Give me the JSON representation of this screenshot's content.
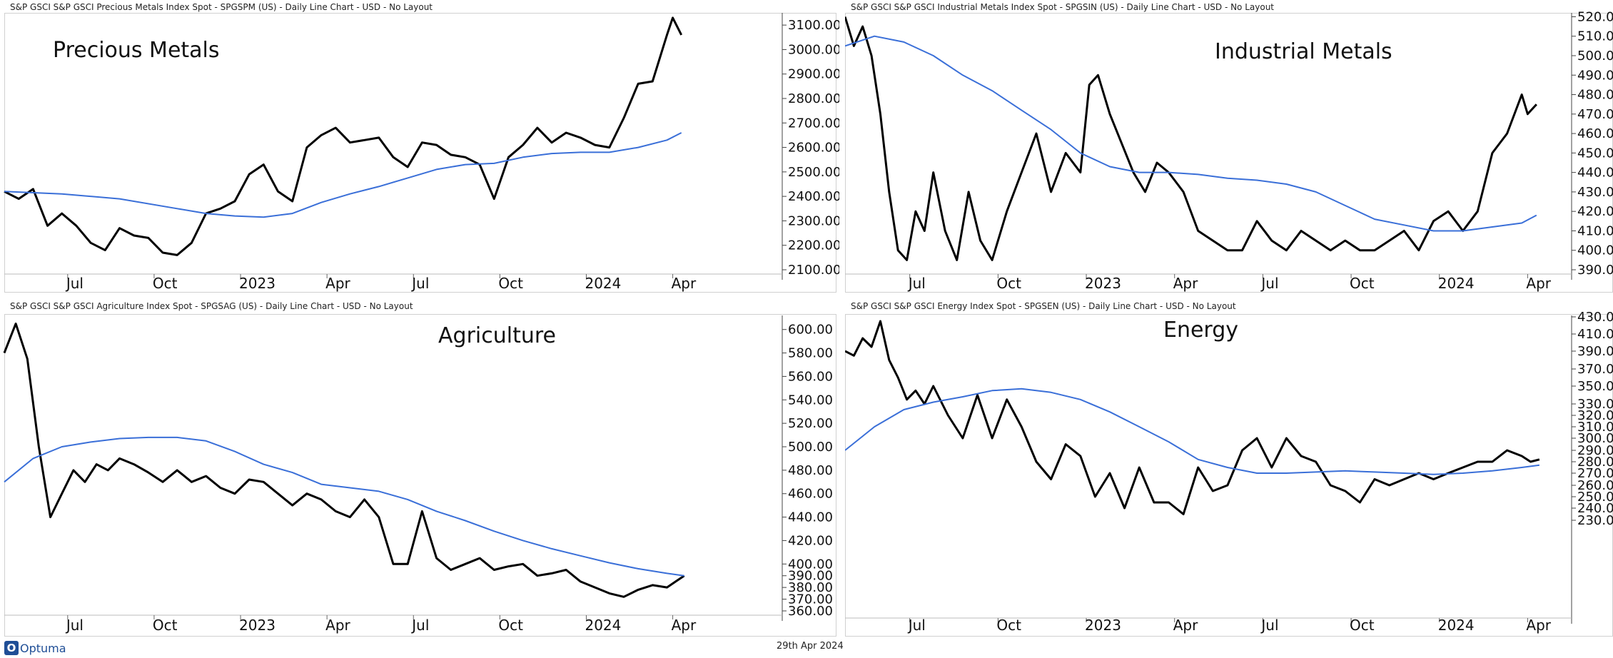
{
  "footer": {
    "logo_text": "Optuma",
    "date": "29th Apr 2024",
    "logo_color": "#1f4e96"
  },
  "colors": {
    "price_line": "#000000",
    "ma_line": "#3a6fd8",
    "watermark": "#f2b705",
    "grid": "#d0d0d0"
  },
  "chart_data": [
    {
      "type": "line",
      "header": "S&P GSCI S&P GSCI Precious Metals Index Spot - SPGSPM (US) - Daily Line Chart - USD - No Layout",
      "title": "Precious Metals",
      "yticks": [
        "3100.00",
        "3000.00",
        "2900.00",
        "2800.00",
        "2700.00",
        "2600.00",
        "2500.00",
        "2400.00",
        "2300.00",
        "2200.00",
        "2100.00"
      ],
      "ylim": [
        2100,
        3150
      ],
      "xticks": [
        "Jul",
        "Oct",
        "2023",
        "Apr",
        "Jul",
        "Oct",
        "2024",
        "Apr"
      ],
      "xtick_pos": [
        2.2,
        5.2,
        8.2,
        11.2,
        14.2,
        17.2,
        20.2,
        23.2
      ],
      "xlim": [
        0,
        27
      ],
      "series": [
        {
          "name": "",
          "role": "price",
          "x": [
            0,
            0.5,
            1,
            1.5,
            2,
            2.5,
            3,
            3.5,
            4,
            4.5,
            5,
            5.5,
            6,
            6.5,
            7,
            7.5,
            8,
            8.5,
            9,
            9.5,
            10,
            10.5,
            11,
            11.5,
            12,
            12.5,
            13,
            13.5,
            14,
            14.5,
            15,
            15.5,
            16,
            16.5,
            17,
            17.5,
            18,
            18.5,
            19,
            19.5,
            20,
            20.5,
            21,
            21.5,
            22,
            22.5,
            23,
            23.2,
            23.5
          ],
          "y": [
            2420,
            2390,
            2430,
            2280,
            2330,
            2280,
            2210,
            2180,
            2270,
            2240,
            2230,
            2170,
            2160,
            2210,
            2330,
            2350,
            2380,
            2490,
            2530,
            2420,
            2380,
            2600,
            2650,
            2680,
            2620,
            2630,
            2640,
            2560,
            2520,
            2620,
            2610,
            2570,
            2560,
            2530,
            2390,
            2560,
            2610,
            2680,
            2620,
            2660,
            2640,
            2610,
            2600,
            2720,
            2860,
            2870,
            3060,
            3130,
            3060
          ]
        },
        {
          "name": "",
          "role": "moving-average",
          "x": [
            0,
            2,
            4,
            6,
            7,
            8,
            9,
            10,
            11,
            12,
            13,
            14,
            15,
            16,
            17,
            18,
            19,
            20,
            21,
            22,
            23,
            23.5
          ],
          "y": [
            2420,
            2410,
            2390,
            2350,
            2330,
            2320,
            2315,
            2330,
            2375,
            2410,
            2440,
            2475,
            2510,
            2530,
            2535,
            2560,
            2575,
            2580,
            2580,
            2600,
            2630,
            2660
          ]
        }
      ]
    },
    {
      "type": "line",
      "header": "S&P GSCI S&P GSCI Industrial Metals Index Spot - SPGSIN (US) - Daily Line Chart - USD - No Layout",
      "title": "Industrial Metals",
      "yticks": [
        "520.00",
        "510.00",
        "500.00",
        "490.00",
        "480.00",
        "470.00",
        "460.00",
        "450.00",
        "440.00",
        "430.00",
        "420.00",
        "410.00",
        "400.00",
        "390.00"
      ],
      "ylim": [
        390,
        522
      ],
      "xticks": [
        "Jul",
        "Oct",
        "2023",
        "Apr",
        "Jul",
        "Oct",
        "2024",
        "Apr"
      ],
      "xtick_pos": [
        2.2,
        5.2,
        8.2,
        11.2,
        14.2,
        17.2,
        20.2,
        23.2
      ],
      "xlim": [
        0,
        24.5
      ],
      "series": [
        {
          "name": "",
          "role": "price",
          "x": [
            0,
            0.3,
            0.6,
            0.9,
            1.2,
            1.5,
            1.8,
            2.1,
            2.4,
            2.7,
            3.0,
            3.4,
            3.8,
            4.2,
            4.6,
            5.0,
            5.5,
            6,
            6.5,
            7,
            7.5,
            8,
            8.3,
            8.6,
            9,
            9.4,
            9.8,
            10.2,
            10.6,
            11,
            11.5,
            12,
            12.5,
            13,
            13.5,
            14,
            14.5,
            15,
            15.5,
            16,
            16.5,
            17,
            17.5,
            18,
            18.5,
            19,
            19.5,
            20,
            20.5,
            21,
            21.5,
            22,
            22.5,
            23,
            23.2,
            23.5
          ],
          "y": [
            520,
            505,
            515,
            500,
            470,
            430,
            400,
            395,
            420,
            410,
            440,
            410,
            395,
            430,
            405,
            395,
            420,
            440,
            460,
            430,
            450,
            440,
            485,
            490,
            470,
            455,
            440,
            430,
            445,
            440,
            430,
            410,
            405,
            400,
            400,
            415,
            405,
            400,
            410,
            405,
            400,
            405,
            400,
            400,
            405,
            410,
            400,
            415,
            420,
            410,
            420,
            450,
            460,
            480,
            470,
            475
          ]
        },
        {
          "name": "",
          "role": "moving-average",
          "x": [
            0,
            1,
            2,
            3,
            4,
            5,
            6,
            7,
            8,
            9,
            10,
            11,
            12,
            13,
            14,
            15,
            16,
            17,
            18,
            19,
            20,
            21,
            22,
            23,
            23.5
          ],
          "y": [
            505,
            510,
            507,
            500,
            490,
            482,
            472,
            462,
            450,
            443,
            440,
            440,
            439,
            437,
            436,
            434,
            430,
            423,
            416,
            413,
            410,
            410,
            412,
            414,
            418
          ]
        }
      ]
    },
    {
      "type": "line",
      "header": "S&P GSCI S&P GSCI Agriculture Index Spot - SPGSAG (US) - Daily Line Chart - USD - No Layout",
      "title": "Agriculture",
      "yticks": [
        "600.00",
        "580.00",
        "560.00",
        "540.00",
        "520.00",
        "500.00",
        "480.00",
        "460.00",
        "440.00",
        "420.00",
        "400.00",
        "390.00",
        "380.00",
        "370.00",
        "360.00"
      ],
      "ylim": [
        360,
        612
      ],
      "xticks": [
        "Jul",
        "Oct",
        "2023",
        "Apr",
        "Jul",
        "Oct",
        "2024",
        "Apr"
      ],
      "xtick_pos": [
        2.2,
        5.2,
        8.2,
        11.2,
        14.2,
        17.2,
        20.2,
        23.2
      ],
      "xlim": [
        0,
        27
      ],
      "series": [
        {
          "name": "",
          "role": "price",
          "x": [
            0,
            0.4,
            0.8,
            1.2,
            1.6,
            2,
            2.4,
            2.8,
            3.2,
            3.6,
            4,
            4.5,
            5,
            5.5,
            6,
            6.5,
            7,
            7.5,
            8,
            8.5,
            9,
            9.5,
            10,
            10.5,
            11,
            11.5,
            12,
            12.5,
            13,
            13.5,
            14,
            14.5,
            15,
            15.5,
            16,
            16.5,
            17,
            17.5,
            18,
            18.5,
            19,
            19.5,
            20,
            20.5,
            21,
            21.5,
            22,
            22.5,
            23,
            23.3,
            23.6
          ],
          "y": [
            580,
            605,
            575,
            500,
            440,
            460,
            480,
            470,
            485,
            480,
            490,
            485,
            478,
            470,
            480,
            470,
            475,
            465,
            460,
            472,
            470,
            460,
            450,
            460,
            455,
            445,
            440,
            455,
            440,
            400,
            400,
            445,
            405,
            395,
            400,
            405,
            395,
            398,
            400,
            390,
            392,
            395,
            385,
            380,
            375,
            372,
            378,
            382,
            380,
            385,
            390
          ]
        },
        {
          "name": "",
          "role": "moving-average",
          "x": [
            0,
            1,
            2,
            3,
            4,
            5,
            6,
            7,
            8,
            9,
            10,
            11,
            12,
            13,
            14,
            15,
            16,
            17,
            18,
            19,
            20,
            21,
            22,
            23,
            23.6
          ],
          "y": [
            470,
            490,
            500,
            504,
            507,
            508,
            508,
            505,
            496,
            485,
            478,
            468,
            465,
            462,
            455,
            445,
            437,
            428,
            420,
            413,
            407,
            401,
            396,
            392,
            390
          ]
        }
      ]
    },
    {
      "type": "line",
      "header": "S&P GSCI S&P GSCI Energy Index Spot - SPGSEN (US) - Daily Line Chart - USD - No Layout",
      "title": "Energy",
      "yticks": [
        "430.00",
        "410.00",
        "390.00",
        "370.00",
        "350.00",
        "330.00",
        "320.00",
        "310.00",
        "300.00",
        "290.00",
        "280.00",
        "270.00",
        "260.00",
        "250.00",
        "240.00",
        "230.00"
      ],
      "yticks_px": [
        2,
        26,
        50,
        75,
        99,
        124,
        140,
        156,
        172,
        189,
        205,
        221,
        238,
        254,
        270,
        287
      ],
      "xticks": [
        "Jul",
        "Oct",
        "2023",
        "Apr",
        "Jul",
        "Oct",
        "2024",
        "Apr"
      ],
      "xtick_pos": [
        2.2,
        5.2,
        8.2,
        11.2,
        14.2,
        17.2,
        20.2,
        23.2
      ],
      "xlim": [
        0,
        24.5
      ],
      "series": [
        {
          "name": "",
          "role": "price",
          "x": [
            0,
            0.3,
            0.6,
            0.9,
            1.2,
            1.5,
            1.8,
            2.1,
            2.4,
            2.7,
            3.0,
            3.5,
            4,
            4.5,
            5,
            5.5,
            6,
            6.5,
            7,
            7.5,
            8,
            8.5,
            9,
            9.5,
            10,
            10.5,
            11,
            11.5,
            12,
            12.5,
            13,
            13.5,
            14,
            14.5,
            15,
            15.5,
            16,
            16.5,
            17,
            17.5,
            18,
            18.5,
            19,
            19.5,
            20,
            20.5,
            21,
            21.5,
            22,
            22.5,
            23,
            23.3,
            23.6
          ],
          "y": [
            390,
            385,
            405,
            395,
            425,
            380,
            360,
            335,
            345,
            330,
            350,
            320,
            300,
            340,
            300,
            335,
            310,
            280,
            265,
            295,
            285,
            250,
            270,
            240,
            275,
            245,
            245,
            235,
            275,
            255,
            260,
            290,
            300,
            275,
            300,
            285,
            280,
            260,
            255,
            245,
            265,
            260,
            265,
            270,
            265,
            270,
            275,
            280,
            280,
            290,
            285,
            280,
            282
          ]
        },
        {
          "name": "",
          "role": "moving-average",
          "x": [
            0,
            1,
            2,
            3,
            4,
            5,
            6,
            7,
            8,
            9,
            10,
            11,
            12,
            13,
            14,
            15,
            16,
            17,
            18,
            19,
            20,
            21,
            22,
            23,
            23.6
          ],
          "y": [
            290,
            310,
            325,
            332,
            338,
            345,
            347,
            343,
            335,
            323,
            310,
            297,
            282,
            275,
            270,
            270,
            271,
            272,
            271,
            270,
            269,
            270,
            272,
            275,
            277
          ]
        }
      ]
    }
  ]
}
